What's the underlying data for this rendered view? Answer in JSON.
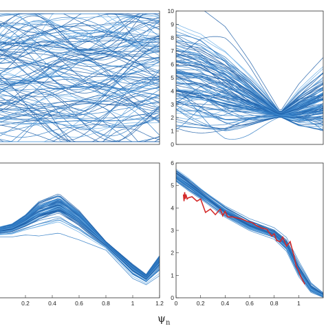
{
  "figure": {
    "xlabel": "ψ",
    "xlabel_subscript": "n"
  },
  "colors": {
    "curve_dark": "#1f5fa8",
    "curve_mid": "#2f7bc4",
    "curve_light": "#6aaee6",
    "highlight": "#d42a2a",
    "axes": "#2a2a2a"
  },
  "chart_data": [
    {
      "type": "line",
      "panel": "top-left",
      "description_note": "",
      "xlim": [
        0,
        1.2
      ],
      "ylim": [
        0,
        10
      ],
      "x_ticks": [],
      "y_ticks": [],
      "series_count": 120,
      "style": "random smooth profiles spanning full range",
      "mean_profile": [
        5,
        5,
        5,
        5,
        5,
        5,
        5
      ],
      "spread": [
        4.5,
        4.5,
        4.5,
        4.5,
        4.5,
        4.5,
        4.5
      ]
    },
    {
      "type": "line",
      "panel": "top-right",
      "xlim": [
        0,
        1.2
      ],
      "ylim": [
        0,
        10
      ],
      "x_ticks": [],
      "y_ticks": [
        0,
        1,
        2,
        3,
        4,
        5,
        6,
        7,
        8,
        9,
        10
      ],
      "series_count": 110,
      "style": "profiles converging near x=0.85",
      "x": [
        0,
        0.2,
        0.4,
        0.6,
        0.85,
        1.0,
        1.2
      ],
      "mean_profile": [
        4.5,
        4.2,
        3.6,
        3.0,
        2.2,
        2.4,
        2.8
      ],
      "spread": [
        3.8,
        3.6,
        3.0,
        1.8,
        0.15,
        1.2,
        2.2
      ]
    },
    {
      "type": "line",
      "panel": "bottom-left",
      "xlim": [
        0,
        1.2
      ],
      "ylim": [
        0,
        6
      ],
      "x_ticks": [
        0.2,
        0.4,
        0.6,
        0.8,
        1,
        1.2
      ],
      "y_ticks": [],
      "series_count": 70,
      "style": "peak near x=0.45, minimum near x=1.1",
      "x": [
        0,
        0.1,
        0.2,
        0.3,
        0.45,
        0.6,
        0.8,
        1.0,
        1.1,
        1.2
      ],
      "mean_profile": [
        3.0,
        3.1,
        3.4,
        3.8,
        4.1,
        3.5,
        2.4,
        1.3,
        0.9,
        1.6
      ],
      "spread": [
        0.15,
        0.2,
        0.3,
        0.5,
        0.55,
        0.4,
        0.12,
        0.2,
        0.15,
        0.3
      ]
    },
    {
      "type": "line",
      "panel": "bottom-right",
      "xlim": [
        0,
        1.2
      ],
      "ylim": [
        0,
        6
      ],
      "x_ticks": [
        0,
        0.2,
        0.4,
        0.6,
        0.8,
        1
      ],
      "y_ticks": [
        0,
        1,
        2,
        3,
        4,
        5,
        6
      ],
      "series_count": 60,
      "style": "decreasing profiles with one highlighted measured profile",
      "x": [
        0,
        0.1,
        0.2,
        0.3,
        0.4,
        0.5,
        0.6,
        0.7,
        0.8,
        0.9,
        1.0,
        1.1,
        1.2
      ],
      "mean_profile": [
        5.4,
        5.0,
        4.6,
        4.2,
        3.8,
        3.5,
        3.2,
        3.0,
        2.8,
        2.3,
        1.2,
        0.4,
        0.1
      ],
      "spread": [
        0.25,
        0.25,
        0.2,
        0.2,
        0.2,
        0.2,
        0.2,
        0.2,
        0.2,
        0.25,
        0.3,
        0.2,
        0.1
      ],
      "highlight_series": {
        "x": [
          0.06,
          0.065,
          0.07,
          0.075,
          0.08,
          0.09,
          0.1,
          0.13,
          0.17,
          0.2,
          0.24,
          0.28,
          0.32,
          0.36,
          0.38,
          0.4,
          0.42,
          0.46,
          0.5,
          0.54,
          0.58,
          0.62,
          0.66,
          0.7,
          0.74,
          0.78,
          0.8,
          0.82,
          0.85,
          0.87,
          0.9,
          0.93,
          0.96,
          0.98,
          1.0,
          1.02,
          1.05
        ],
        "y": [
          4.6,
          4.3,
          4.7,
          4.4,
          4.6,
          4.4,
          4.45,
          4.5,
          4.3,
          4.4,
          3.8,
          3.95,
          3.7,
          3.95,
          3.65,
          3.85,
          3.6,
          3.6,
          3.55,
          3.5,
          3.4,
          3.35,
          3.2,
          3.1,
          3.05,
          2.75,
          2.85,
          2.55,
          2.5,
          2.7,
          2.3,
          2.5,
          1.9,
          1.4,
          1.2,
          0.9,
          0.6
        ]
      }
    }
  ]
}
